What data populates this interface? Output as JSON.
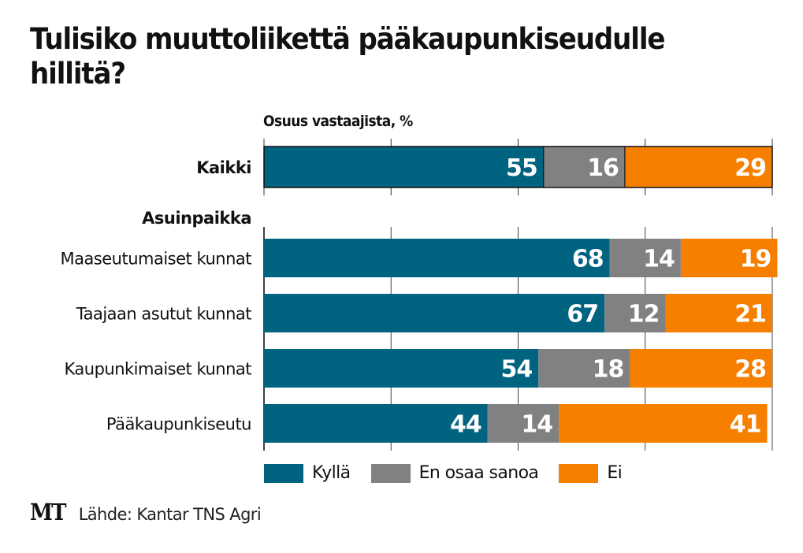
{
  "chart_data": {
    "type": "bar",
    "orientation": "horizontal",
    "stacked": true,
    "title": "Tulisiko muuttoliikettä pääkaupunkiseudulle hillitä?",
    "subtitle": "Osuus vastaajista, %",
    "xlim": [
      0,
      100
    ],
    "gridlines_at": [
      0,
      25,
      50,
      75,
      100
    ],
    "group_heading": "Asuinpaikka",
    "categories": [
      "Kaikki",
      "Maaseutumaiset kunnat",
      "Taajaan asutut kunnat",
      "Kaupunkimaiset kunnat",
      "Pääkaupunkiseutu"
    ],
    "series": [
      {
        "name": "Kyllä",
        "color": "#00637f",
        "values": [
          55,
          68,
          67,
          54,
          44
        ]
      },
      {
        "name": "En osaa sanoa",
        "color": "#7f8183",
        "values": [
          16,
          14,
          12,
          18,
          14
        ]
      },
      {
        "name": "Ei",
        "color": "#f77f00",
        "values": [
          29,
          19,
          21,
          28,
          41
        ]
      }
    ],
    "legend_position": "bottom-right",
    "source": "Lähde: Kantar TNS Agri"
  },
  "footer": {
    "logo": "MT",
    "source": "Lähde: Kantar TNS Agri"
  }
}
